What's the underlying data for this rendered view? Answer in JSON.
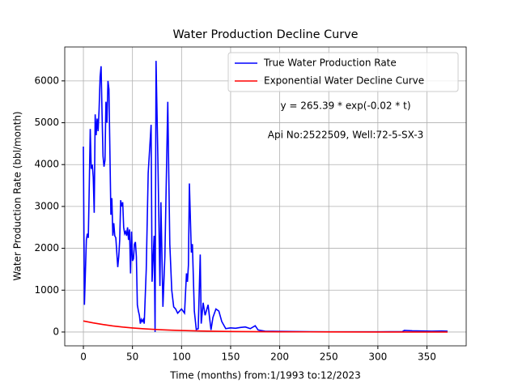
{
  "chart_data": {
    "type": "line",
    "title": "Water Production Decline Curve",
    "xlabel": "Time (months) from:1/1993 to:12/2023",
    "ylabel": "Water Production Rate (bbl/month)",
    "annotations": [
      "y = 265.39 * exp(-0.02 * t)",
      "Api No:2522509, Well:72-5-SX-3"
    ],
    "xlim": [
      -19,
      390
    ],
    "ylim": [
      -330,
      6810
    ],
    "xticks": [
      0,
      50,
      100,
      150,
      200,
      250,
      300,
      350
    ],
    "yticks": [
      0,
      1000,
      2000,
      3000,
      4000,
      5000,
      6000
    ],
    "grid": true,
    "legend": "upper right",
    "series": [
      {
        "name": "True Water Production Rate",
        "color": "#0000ff",
        "x": [
          0,
          1,
          3,
          4,
          5,
          6,
          7,
          8,
          9,
          10,
          11,
          12,
          13,
          14,
          15,
          16,
          17,
          18,
          19,
          20,
          21,
          22,
          23,
          24,
          25,
          26,
          27,
          28,
          29,
          30,
          31,
          32,
          33,
          34,
          35,
          36,
          37,
          38,
          39,
          40,
          41,
          42,
          43,
          44,
          45,
          46,
          47,
          48,
          49,
          50,
          51,
          52,
          53,
          54,
          55,
          56,
          57,
          58,
          59,
          60,
          61,
          62,
          64,
          66,
          69,
          70,
          72,
          73,
          74,
          76,
          78,
          79,
          81,
          83,
          86,
          87,
          88,
          90,
          92,
          94,
          96,
          98,
          100,
          103,
          105,
          106,
          107,
          108,
          110,
          111,
          113,
          115,
          117,
          119,
          120,
          122,
          124,
          127,
          130,
          132,
          135,
          138,
          141,
          145,
          150,
          155,
          160,
          165,
          170,
          175,
          178,
          185,
          200,
          220,
          250,
          280,
          300,
          325,
          327,
          335,
          345,
          355,
          365,
          371
        ],
        "values": [
          4430,
          650,
          2200,
          2350,
          2250,
          3500,
          4850,
          3900,
          4000,
          3700,
          2850,
          5200,
          4700,
          5100,
          4800,
          5300,
          6100,
          6350,
          5200,
          4200,
          3950,
          4100,
          5500,
          5000,
          6000,
          5800,
          4300,
          2800,
          3200,
          2300,
          2600,
          2300,
          2250,
          1900,
          1550,
          1800,
          2200,
          3150,
          3000,
          3100,
          2500,
          2350,
          2400,
          2300,
          2500,
          2200,
          2450,
          1400,
          2400,
          1700,
          1750,
          2100,
          2150,
          1800,
          650,
          500,
          400,
          200,
          300,
          250,
          300,
          200,
          1500,
          3800,
          4950,
          1200,
          2300,
          0,
          6480,
          4000,
          1100,
          3100,
          600,
          1800,
          5500,
          3800,
          2100,
          1000,
          600,
          550,
          450,
          500,
          550,
          450,
          1400,
          1200,
          1600,
          3550,
          1900,
          2100,
          500,
          60,
          80,
          1850,
          200,
          700,
          400,
          650,
          50,
          350,
          550,
          500,
          250,
          80,
          100,
          90,
          110,
          120,
          80,
          150,
          50,
          20,
          15,
          10,
          5,
          5,
          5,
          10,
          40,
          30,
          25,
          20,
          25,
          20
        ]
      },
      {
        "name": "Exponential Water Decline Curve",
        "color": "#ff0000",
        "x": [
          0,
          10,
          20,
          30,
          40,
          50,
          60,
          70,
          80,
          90,
          100,
          120,
          150,
          200,
          250,
          300,
          371
        ],
        "values": [
          265,
          217,
          178,
          146,
          119,
          98,
          80,
          65,
          54,
          44,
          36,
          24,
          13,
          5,
          2,
          0.7,
          0.2
        ]
      }
    ]
  }
}
